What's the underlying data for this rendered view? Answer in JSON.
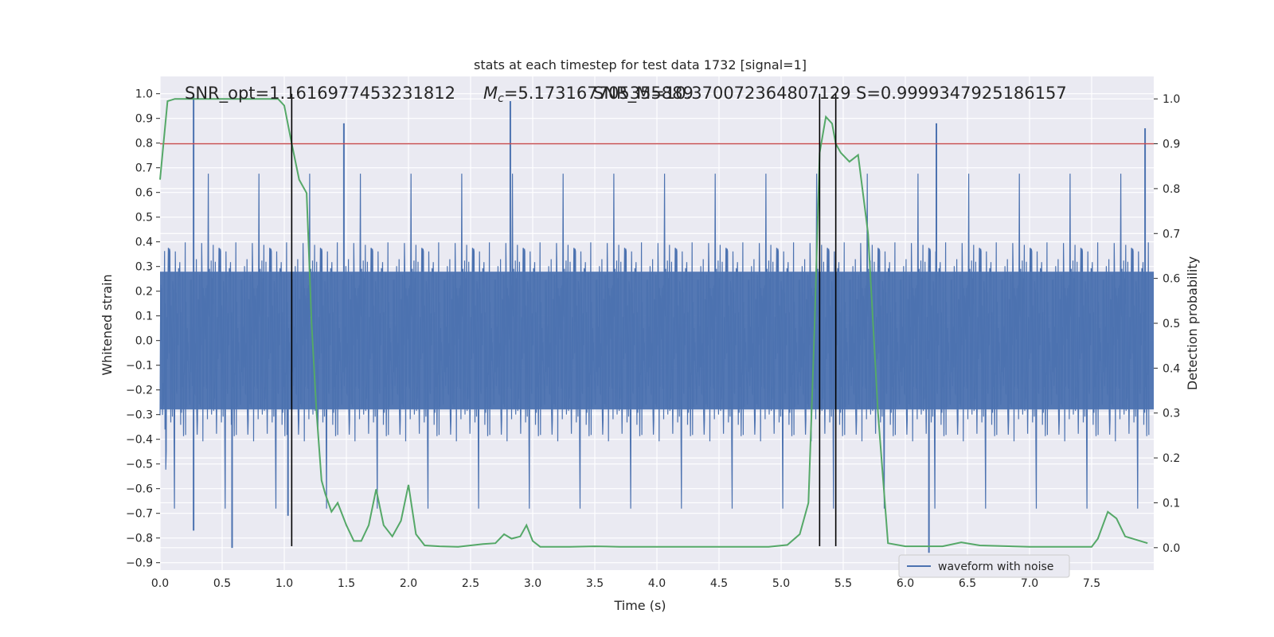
{
  "chart_data": {
    "type": "line",
    "title": "stats at each timestep for test data 1732 [signal=1]",
    "xlabel": "Time (s)",
    "ylabel": "Whitened strain",
    "y2label": "Detection probability",
    "xlim": [
      0.0,
      8.0
    ],
    "ylim": [
      -0.93,
      1.07
    ],
    "y2lim": [
      -0.05,
      1.05
    ],
    "x_ticks": [
      "0.0",
      "0.5",
      "1.0",
      "1.5",
      "2.0",
      "2.5",
      "3.0",
      "3.5",
      "4.0",
      "4.5",
      "5.0",
      "5.5",
      "6.0",
      "6.5",
      "7.0",
      "7.5"
    ],
    "y_ticks": [
      "1.0",
      "0.9",
      "0.8",
      "0.7",
      "0.6",
      "0.5",
      "0.4",
      "0.3",
      "0.2",
      "0.1",
      "0.0",
      "−0.1",
      "−0.2",
      "−0.3",
      "−0.4",
      "−0.5",
      "−0.6",
      "−0.7",
      "−0.8",
      "−0.9"
    ],
    "y2_ticks": [
      "1.0",
      "0.9",
      "0.8",
      "0.7",
      "0.6",
      "0.5",
      "0.4",
      "0.3",
      "0.2",
      "0.1",
      "0.0"
    ],
    "annotations": {
      "snr": "SNR_opt=1.1616977453231812",
      "mc": "=5.173167705355889",
      "mc_symbol": "M",
      "mc_subscript": "c",
      "snr2": "SNR_M=10.370072364807129",
      "s": "S=0.9999347925186157"
    },
    "legend": [
      {
        "name": "waveform with noise",
        "color": "#4c72b0"
      }
    ],
    "grid": true,
    "legend_position": "lower-right",
    "threshold_y2": 0.9,
    "vertical_lines_x": [
      1.06,
      5.31,
      5.44
    ],
    "waveform": {
      "name": "waveform with noise",
      "color": "#4c72b0",
      "amplitude_envelope": {
        "typical_min": -0.45,
        "typical_max": 0.45,
        "peak_max": 1.0,
        "peak_min": -0.84
      },
      "notable_peaks": [
        {
          "x": 0.27,
          "y": 1.0
        },
        {
          "x": 0.27,
          "y": -0.77
        },
        {
          "x": 0.58,
          "y": -0.84
        },
        {
          "x": 1.48,
          "y": 0.88
        },
        {
          "x": 2.82,
          "y": 0.97
        },
        {
          "x": 6.25,
          "y": 0.88
        },
        {
          "x": 7.93,
          "y": 0.86
        },
        {
          "x": 1.03,
          "y": -0.71
        },
        {
          "x": 6.19,
          "y": -0.86
        }
      ]
    },
    "detection_probability": {
      "color": "#55a868",
      "x": [
        0.0,
        0.06,
        0.12,
        0.2,
        0.3,
        0.5,
        0.7,
        0.85,
        0.95,
        1.0,
        1.06,
        1.12,
        1.18,
        1.22,
        1.26,
        1.3,
        1.33,
        1.38,
        1.43,
        1.5,
        1.56,
        1.62,
        1.68,
        1.74,
        1.8,
        1.87,
        1.94,
        2.0,
        2.06,
        2.13,
        2.25,
        2.4,
        2.5,
        2.6,
        2.7,
        2.77,
        2.83,
        2.9,
        2.95,
        3.0,
        3.06,
        3.12,
        3.3,
        3.5,
        3.7,
        4.0,
        4.5,
        4.9,
        5.05,
        5.15,
        5.22,
        5.27,
        5.31,
        5.36,
        5.41,
        5.44,
        5.48,
        5.55,
        5.62,
        5.7,
        5.78,
        5.86,
        6.0,
        6.3,
        6.45,
        6.6,
        7.0,
        7.5,
        7.55,
        7.63,
        7.7,
        7.77,
        7.95
      ],
      "y": [
        0.82,
        0.995,
        1.0,
        1.0,
        1.0,
        1.0,
        1.0,
        1.0,
        1.0,
        0.985,
        0.9,
        0.82,
        0.79,
        0.5,
        0.3,
        0.15,
        0.12,
        0.08,
        0.1,
        0.05,
        0.015,
        0.015,
        0.05,
        0.13,
        0.05,
        0.025,
        0.06,
        0.14,
        0.03,
        0.005,
        0.003,
        0.002,
        0.005,
        0.008,
        0.01,
        0.03,
        0.02,
        0.025,
        0.05,
        0.015,
        0.002,
        0.002,
        0.002,
        0.003,
        0.002,
        0.002,
        0.002,
        0.002,
        0.006,
        0.03,
        0.1,
        0.5,
        0.88,
        0.96,
        0.945,
        0.9,
        0.88,
        0.86,
        0.875,
        0.7,
        0.3,
        0.01,
        0.003,
        0.003,
        0.012,
        0.005,
        0.002,
        0.002,
        0.02,
        0.08,
        0.065,
        0.025,
        0.01
      ]
    }
  }
}
